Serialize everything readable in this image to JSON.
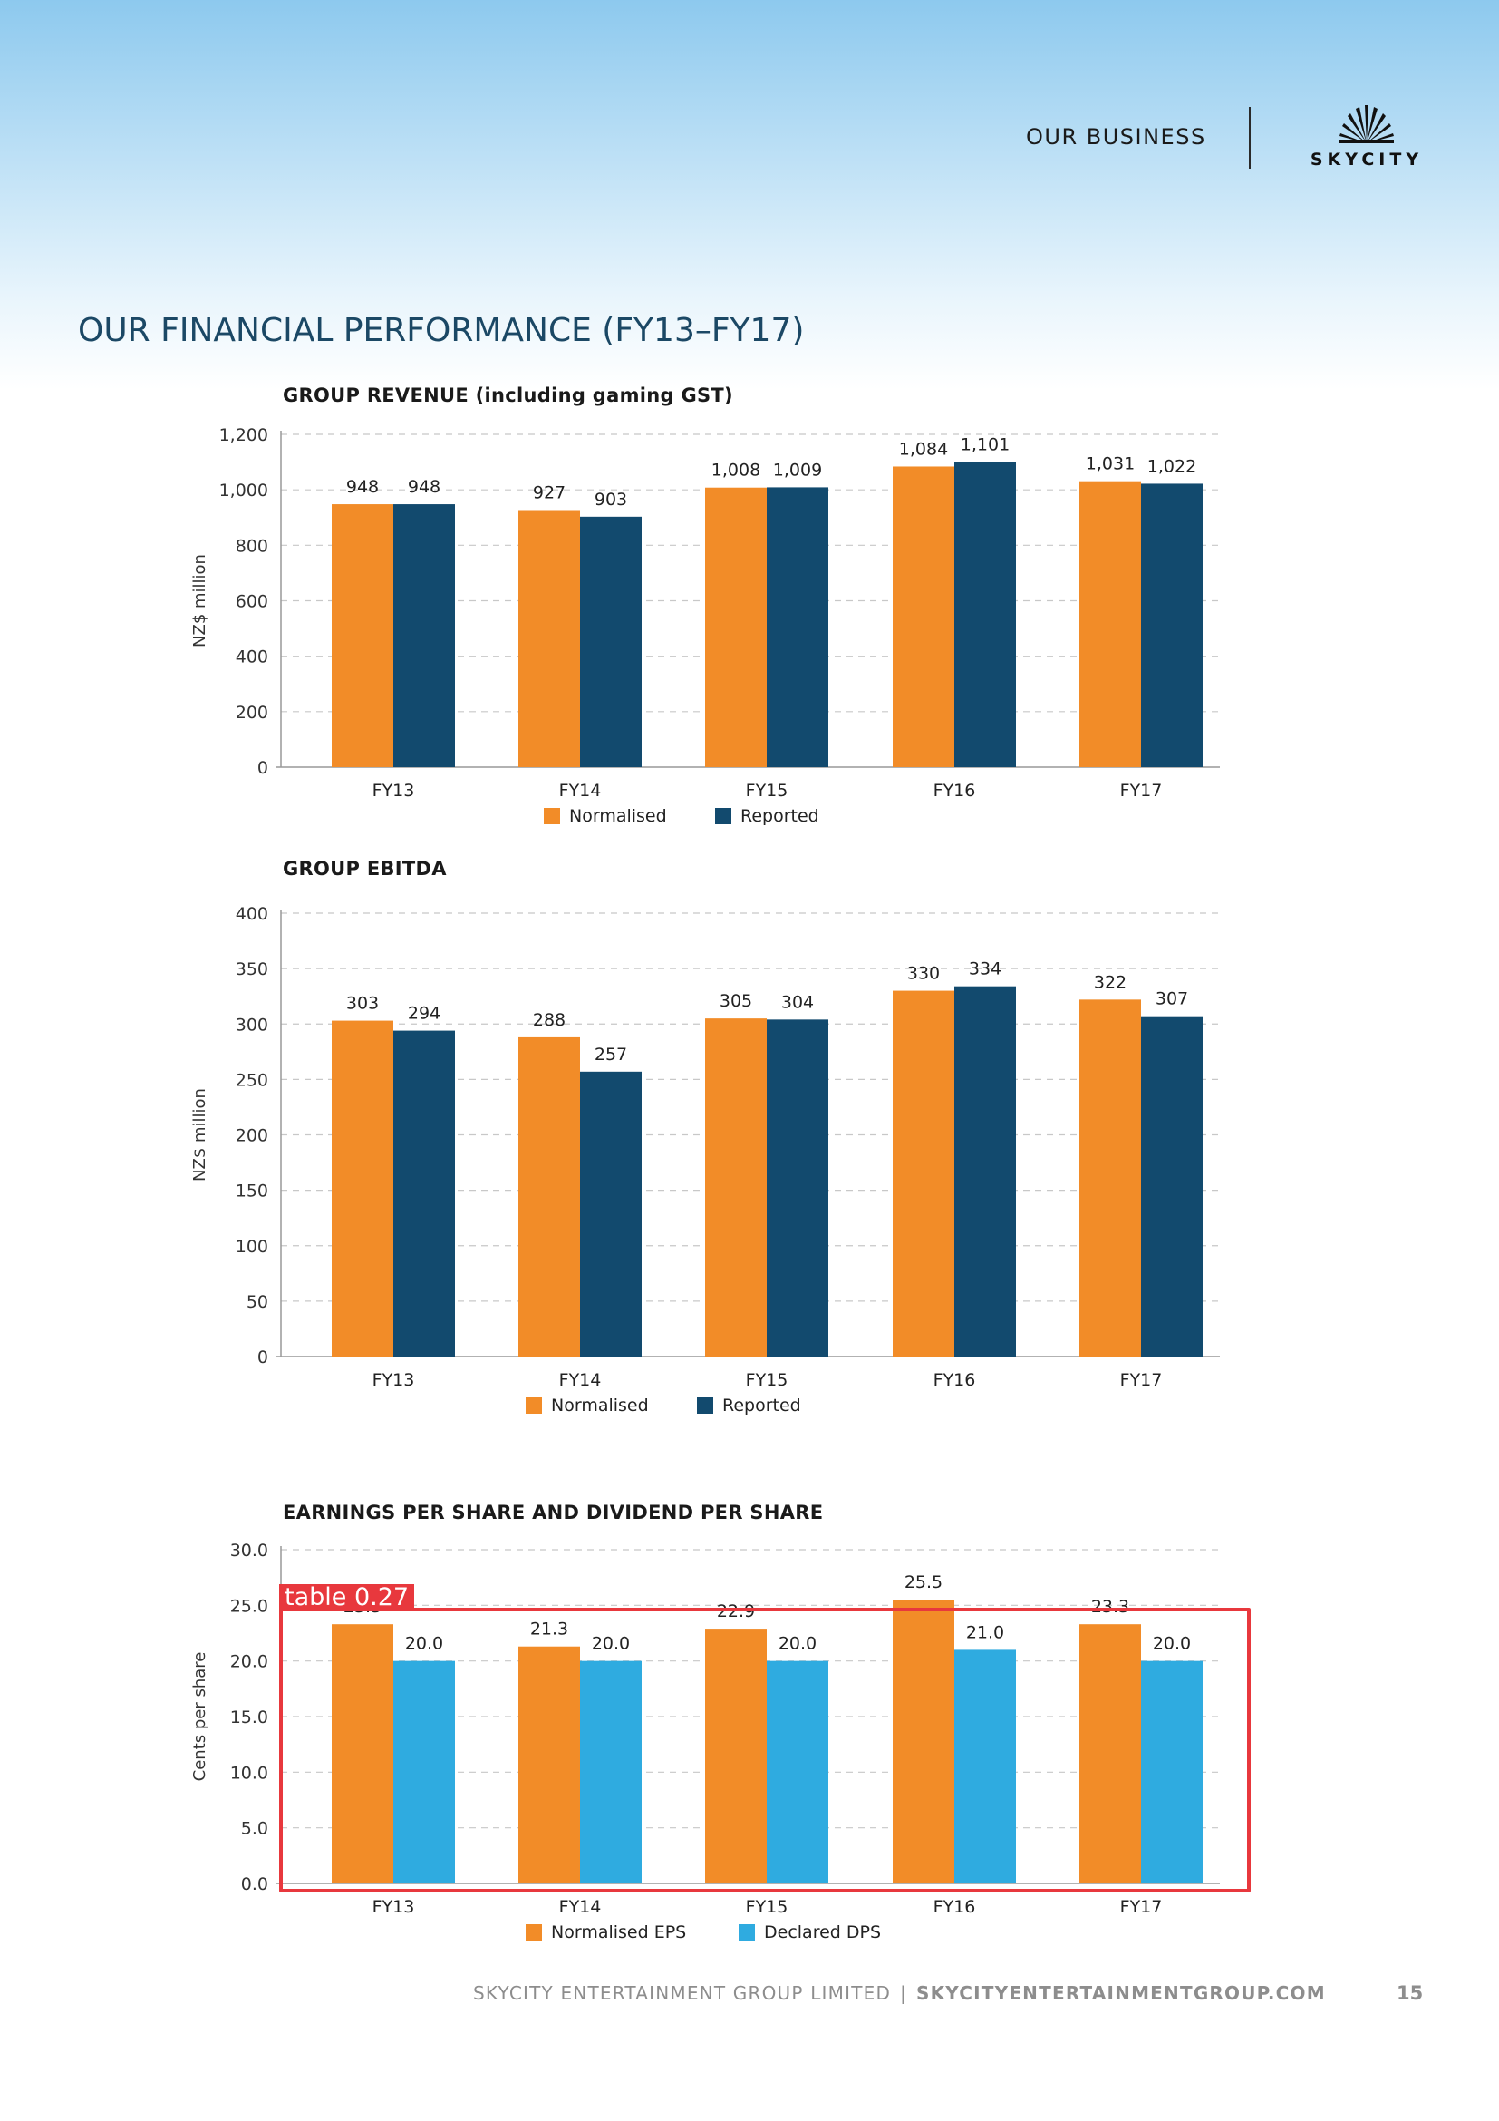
{
  "header": {
    "section_label": "OUR BUSINESS",
    "logo_text": "SKYCITY"
  },
  "page_title": "OUR FINANCIAL PERFORMANCE (FY13–FY17)",
  "footer": {
    "company": "SKYCITY ENTERTAINMENT GROUP LIMITED",
    "separator": "|",
    "url": "SKYCITYENTERTAINMENTGROUP.COM",
    "page_number": "15"
  },
  "detection_label": "table  0.27",
  "colors": {
    "orange": "#f28c28",
    "navy": "#124a6e",
    "sky": "#2fabe0",
    "title": "#1b4865"
  },
  "chart_data": [
    {
      "type": "bar",
      "title": "GROUP REVENUE (including gaming GST)",
      "ylabel": "NZ$ million",
      "xlabel": "",
      "categories": [
        "FY13",
        "FY14",
        "FY15",
        "FY16",
        "FY17"
      ],
      "ylim": [
        0,
        1200
      ],
      "yticks": [
        0,
        200,
        400,
        600,
        800,
        1000,
        1200
      ],
      "series": [
        {
          "name": "Normalised",
          "color": "#f28c28",
          "values": [
            948,
            927,
            1008,
            1084,
            1031
          ]
        },
        {
          "name": "Reported",
          "color": "#124a6e",
          "values": [
            948,
            903,
            1009,
            1101,
            1022
          ]
        }
      ],
      "legend": "bottom-center",
      "grid": true
    },
    {
      "type": "bar",
      "title": "GROUP EBITDA",
      "ylabel": "NZ$ million",
      "xlabel": "",
      "categories": [
        "FY13",
        "FY14",
        "FY15",
        "FY16",
        "FY17"
      ],
      "ylim": [
        0,
        400
      ],
      "yticks": [
        0,
        50,
        100,
        150,
        200,
        250,
        300,
        350,
        400
      ],
      "series": [
        {
          "name": "Normalised",
          "color": "#f28c28",
          "values": [
            303,
            288,
            305,
            330,
            322
          ]
        },
        {
          "name": "Reported",
          "color": "#124a6e",
          "values": [
            294,
            257,
            304,
            334,
            307
          ]
        }
      ],
      "legend": "bottom-center",
      "grid": true
    },
    {
      "type": "bar",
      "title": "EARNINGS PER SHARE AND DIVIDEND PER SHARE",
      "ylabel": "Cents per share",
      "xlabel": "",
      "categories": [
        "FY13",
        "FY14",
        "FY15",
        "FY16",
        "FY17"
      ],
      "ylim": [
        0,
        30
      ],
      "yticks": [
        0,
        5,
        10,
        15,
        20,
        25,
        30
      ],
      "decimals": 1,
      "series": [
        {
          "name": "Normalised EPS",
          "color": "#f28c28",
          "values": [
            23.3,
            21.3,
            22.9,
            25.5,
            23.3
          ]
        },
        {
          "name": "Declared DPS",
          "color": "#2fabe0",
          "values": [
            20.0,
            20.0,
            20.0,
            21.0,
            20.0
          ]
        }
      ],
      "legend": "bottom-center",
      "grid": true
    }
  ]
}
